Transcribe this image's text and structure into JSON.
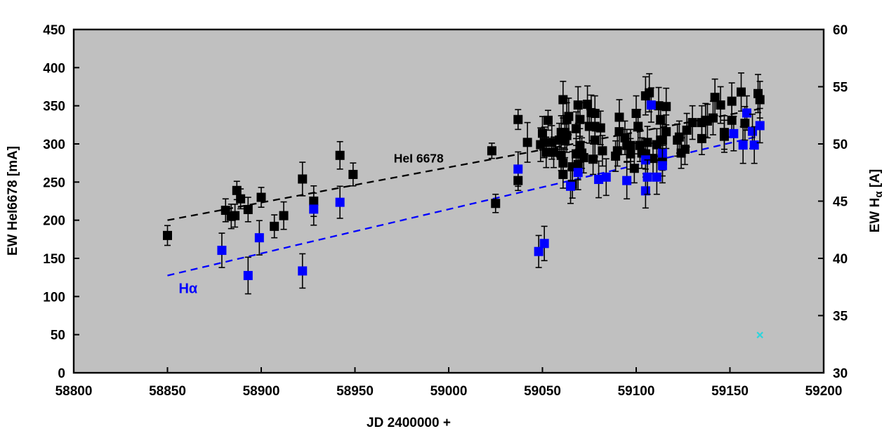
{
  "chart_data": {
    "type": "scatter",
    "title": "",
    "background_color": "#C0C0C0",
    "border_color": "#000000",
    "x_axis": {
      "label": "JD 2400000 +",
      "min": 58800,
      "max": 59200,
      "tick_step": 50,
      "ticks": [
        58800,
        58850,
        58900,
        58950,
        59000,
        59050,
        59100,
        59150,
        59200
      ]
    },
    "y_left": {
      "label": "EW HeI6678 [mA]",
      "min": 0,
      "max": 450,
      "tick_step": 50,
      "ticks": [
        0,
        50,
        100,
        150,
        200,
        250,
        300,
        350,
        400,
        450
      ]
    },
    "y_right": {
      "label": "EW Hα [A]",
      "title_parts": [
        "EW H",
        "α",
        " [A]"
      ],
      "min": 30,
      "max": 60,
      "tick_step": 5,
      "ticks": [
        30,
        35,
        40,
        45,
        50,
        55,
        60
      ]
    },
    "series": [
      {
        "name": "HeI 6678",
        "axis": "left",
        "color": "#000000",
        "marker": "square",
        "label_pos": {
          "jd": 58984,
          "value": 281
        },
        "points": [
          [
            58850,
            180,
            13
          ],
          [
            58881,
            213,
            15
          ],
          [
            58884,
            205,
            16
          ],
          [
            58886,
            206,
            15
          ],
          [
            58887,
            239,
            12
          ],
          [
            58889,
            228,
            13
          ],
          [
            58893,
            214,
            16
          ],
          [
            58900,
            230,
            13
          ],
          [
            58907,
            192,
            15
          ],
          [
            58912,
            206,
            18
          ],
          [
            58922,
            254,
            22
          ],
          [
            58928,
            225,
            20
          ],
          [
            58942,
            285,
            18
          ],
          [
            58949,
            260,
            15
          ],
          [
            59023,
            291,
            10
          ],
          [
            59025,
            222,
            12
          ],
          [
            59037,
            332,
            13
          ],
          [
            59037,
            252,
            13
          ],
          [
            59042,
            302,
            26
          ],
          [
            59049,
            299,
            22
          ],
          [
            59050,
            314,
            22
          ],
          [
            59051,
            302,
            20
          ],
          [
            59052,
            289,
            20
          ],
          [
            59053,
            331,
            13
          ],
          [
            59055,
            302,
            22
          ],
          [
            59056,
            289,
            20
          ],
          [
            59059,
            305,
            22
          ],
          [
            59060,
            315,
            22
          ],
          [
            59060,
            285,
            20
          ],
          [
            59061,
            358,
            24
          ],
          [
            59061,
            275,
            20
          ],
          [
            59061,
            260,
            18
          ],
          [
            59062,
            304,
            22
          ],
          [
            59062,
            315,
            22
          ],
          [
            59063,
            332,
            22
          ],
          [
            59063,
            311,
            22
          ],
          [
            59064,
            336,
            24
          ],
          [
            59066,
            270,
            20
          ],
          [
            59066,
            247,
            18
          ],
          [
            59068,
            320,
            22
          ],
          [
            59068,
            287,
            20
          ],
          [
            59069,
            351,
            24
          ],
          [
            59069,
            273,
            20
          ],
          [
            59070,
            332,
            22
          ],
          [
            59070,
            298,
            22
          ],
          [
            59071,
            288,
            20
          ],
          [
            59072,
            282,
            20
          ],
          [
            59074,
            352,
            24
          ],
          [
            59075,
            323,
            22
          ],
          [
            59076,
            341,
            23
          ],
          [
            59077,
            280,
            20
          ],
          [
            59078,
            340,
            23
          ],
          [
            59078,
            323,
            22
          ],
          [
            59078,
            305,
            22
          ],
          [
            59081,
            321,
            22
          ],
          [
            59082,
            291,
            20
          ],
          [
            59089,
            284,
            20
          ],
          [
            59090,
            291,
            20
          ],
          [
            59091,
            335,
            23
          ],
          [
            59091,
            316,
            22
          ],
          [
            59094,
            308,
            22
          ],
          [
            59095,
            298,
            21
          ],
          [
            59097,
            298,
            21
          ],
          [
            59097,
            287,
            20
          ],
          [
            59099,
            268,
            19
          ],
          [
            59100,
            340,
            23
          ],
          [
            59101,
            323,
            22
          ],
          [
            59102,
            298,
            21
          ],
          [
            59103,
            288,
            20
          ],
          [
            59105,
            287,
            20
          ],
          [
            59105,
            363,
            25
          ],
          [
            59106,
            302,
            21
          ],
          [
            59107,
            367,
            25
          ],
          [
            59109,
            281,
            20
          ],
          [
            59111,
            299,
            21
          ],
          [
            59112,
            350,
            24
          ],
          [
            59113,
            332,
            22
          ],
          [
            59113,
            305,
            21
          ],
          [
            59114,
            305,
            21
          ],
          [
            59114,
            278,
            20
          ],
          [
            59116,
            349,
            24
          ],
          [
            59116,
            316,
            22
          ],
          [
            59122,
            305,
            21
          ],
          [
            59123,
            309,
            21
          ],
          [
            59124,
            288,
            20
          ],
          [
            59126,
            293,
            20
          ],
          [
            59127,
            318,
            22
          ],
          [
            59130,
            328,
            22
          ],
          [
            59135,
            307,
            21
          ],
          [
            59135,
            328,
            22
          ],
          [
            59137,
            331,
            22
          ],
          [
            59138,
            330,
            22
          ],
          [
            59141,
            334,
            22
          ],
          [
            59142,
            361,
            24
          ],
          [
            59145,
            351,
            24
          ],
          [
            59147,
            315,
            22
          ],
          [
            59147,
            310,
            21
          ],
          [
            59151,
            356,
            24
          ],
          [
            59151,
            331,
            22
          ],
          [
            59156,
            368,
            25
          ],
          [
            59158,
            327,
            22
          ],
          [
            59165,
            366,
            25
          ],
          [
            59166,
            358,
            24
          ]
        ]
      },
      {
        "name": "Hα",
        "axis": "right",
        "color": "#0000FF",
        "marker": "square",
        "label_pos": {
          "jd": 58861,
          "value": 37.4
        },
        "points": [
          [
            58879,
            40.7,
            1.5
          ],
          [
            58893,
            38.5,
            1.6
          ],
          [
            58899,
            41.8,
            1.5
          ],
          [
            58922,
            38.9,
            1.5
          ],
          [
            58928,
            44.3,
            1.4
          ],
          [
            58942,
            44.9,
            1.4
          ],
          [
            59037,
            47.8,
            1.5
          ],
          [
            59048,
            40.6,
            1.4
          ],
          [
            59051,
            41.3,
            1.5
          ],
          [
            59065,
            46.3,
            1.5
          ],
          [
            59069,
            47.5,
            1.5
          ],
          [
            59080,
            46.9,
            1.6
          ],
          [
            59084,
            47.1,
            1.6
          ],
          [
            59095,
            46.8,
            1.6
          ],
          [
            59105,
            48.6,
            1.5
          ],
          [
            59105,
            45.9,
            1.5
          ],
          [
            59106,
            47.1,
            1.5
          ],
          [
            59108,
            53.4,
            1.5
          ],
          [
            59111,
            47.1,
            1.5
          ],
          [
            59114,
            49.2,
            1.5
          ],
          [
            59114,
            48.1,
            1.5
          ],
          [
            59152,
            50.9,
            1.5
          ],
          [
            59157,
            49.9,
            1.6
          ],
          [
            59159,
            52.7,
            1.5
          ],
          [
            59162,
            51.1,
            1.5
          ],
          [
            59163,
            49.9,
            1.6
          ],
          [
            59166,
            51.6,
            1.5
          ]
        ]
      }
    ],
    "trend_lines": [
      {
        "series": "HeI 6678",
        "axis": "left",
        "color": "#000000",
        "from": [
          58850,
          200
        ],
        "to": [
          59166,
          346
        ]
      },
      {
        "series": "Hα",
        "axis": "right",
        "color": "#0000FF",
        "from": [
          58850,
          38.5
        ],
        "to": [
          59166,
          50.7
        ]
      }
    ],
    "extra_markers": [
      {
        "type": "x-cross",
        "jd": 59166,
        "axis": "right",
        "value": 33.3,
        "color": "#2FD5DC"
      }
    ]
  }
}
